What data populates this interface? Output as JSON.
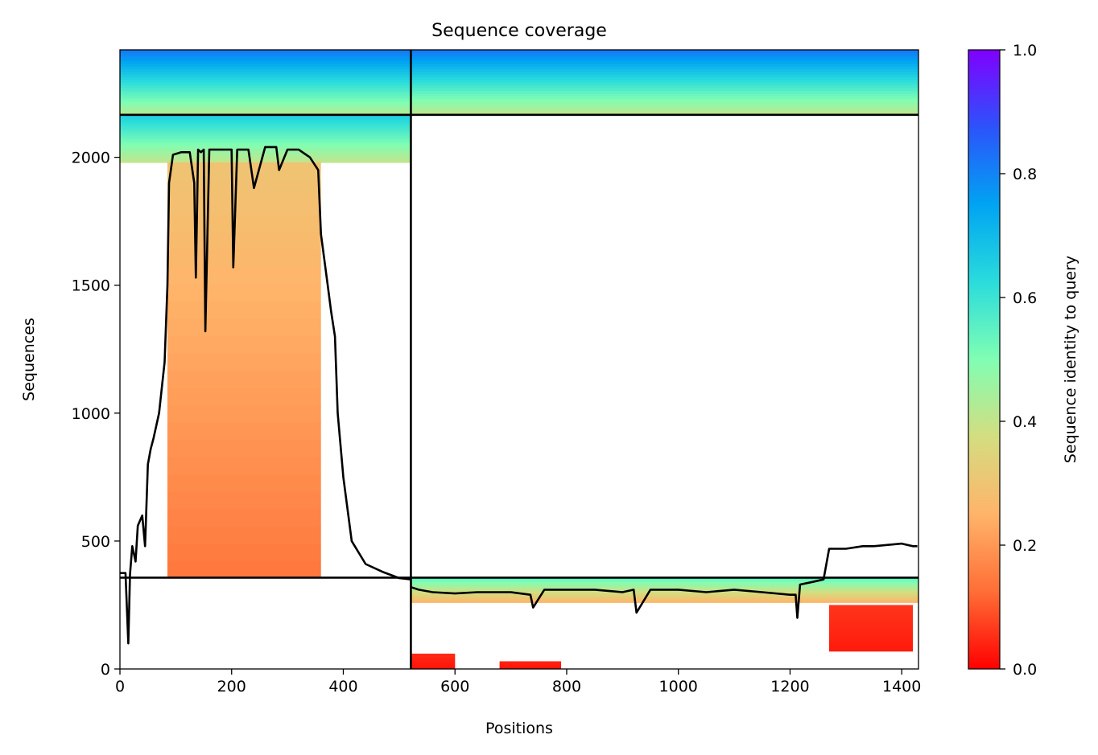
{
  "chart_data": {
    "type": "heatmap",
    "title": "Sequence coverage",
    "xlabel": "Positions",
    "ylabel": "Sequences",
    "xlim": [
      0,
      1430
    ],
    "ylim": [
      0,
      2420
    ],
    "xticks": [
      0,
      200,
      400,
      600,
      800,
      1000,
      1200,
      1400
    ],
    "yticks": [
      0,
      500,
      1000,
      1500,
      2000
    ],
    "grid": false,
    "colorbar": {
      "label": "Sequence identity to query",
      "range": [
        0,
        1
      ],
      "ticks": [
        "0.0",
        "0.2",
        "0.4",
        "0.6",
        "0.8",
        "1.0"
      ],
      "colormap": "rainbow_r",
      "colors": [
        "#ff0000",
        "#ff6e36",
        "#ffb46a",
        "#d4dd80",
        "#80feb3",
        "#2adcdc",
        "#00a4f2",
        "#2c53fb",
        "#8000ff"
      ]
    },
    "chain_boundaries": {
      "x": [
        521
      ],
      "y": [
        357,
        2166
      ]
    },
    "alignment_blocks": [
      {
        "x": [
          0,
          521
        ],
        "y": [
          2166,
          2420
        ],
        "identity": [
          0.42,
          0.82
        ]
      },
      {
        "x": [
          521,
          1430
        ],
        "y": [
          2166,
          2420
        ],
        "identity": [
          0.4,
          0.82
        ]
      },
      {
        "x": [
          0,
          521
        ],
        "y": [
          1980,
          2166
        ],
        "identity": [
          0.4,
          0.66
        ]
      },
      {
        "x": [
          85,
          360
        ],
        "y": [
          357,
          1980
        ],
        "identity": [
          0.14,
          0.3
        ]
      },
      {
        "x": [
          521,
          1430
        ],
        "y": [
          260,
          357
        ],
        "identity": [
          0.25,
          0.55
        ]
      },
      {
        "x": [
          1270,
          1420
        ],
        "y": [
          70,
          250
        ],
        "identity": [
          0.03,
          0.06
        ]
      },
      {
        "x": [
          521,
          600
        ],
        "y": [
          0,
          60
        ],
        "identity": [
          0.02,
          0.05
        ]
      },
      {
        "x": [
          680,
          790
        ],
        "y": [
          0,
          30
        ],
        "identity": [
          0.02,
          0.04
        ]
      }
    ],
    "coverage_line": {
      "color": "#000000",
      "x": [
        0,
        10,
        15,
        18,
        22,
        28,
        32,
        40,
        45,
        50,
        55,
        60,
        70,
        80,
        85,
        88,
        95,
        110,
        125,
        133,
        136,
        140,
        145,
        150,
        153,
        160,
        180,
        200,
        203,
        210,
        230,
        240,
        260,
        280,
        285,
        300,
        320,
        340,
        355,
        360,
        372,
        378,
        385,
        390,
        400,
        415,
        440,
        470,
        500,
        521,
        521,
        535,
        560,
        600,
        640,
        700,
        735,
        740,
        760,
        800,
        850,
        900,
        920,
        925,
        950,
        1000,
        1050,
        1100,
        1150,
        1200,
        1210,
        1213,
        1218,
        1240,
        1260,
        1270,
        1280,
        1300,
        1330,
        1350,
        1400,
        1420,
        1428
      ],
      "y": [
        375,
        375,
        100,
        370,
        480,
        420,
        560,
        600,
        480,
        800,
        860,
        900,
        1000,
        1200,
        1500,
        1900,
        2010,
        2020,
        2020,
        1900,
        1530,
        2030,
        2020,
        2030,
        1320,
        2030,
        2030,
        2030,
        1570,
        2030,
        2030,
        1880,
        2040,
        2040,
        1950,
        2030,
        2030,
        2000,
        1950,
        1700,
        1500,
        1400,
        1300,
        1000,
        750,
        500,
        410,
        380,
        355,
        350,
        320,
        310,
        300,
        295,
        300,
        300,
        290,
        240,
        310,
        310,
        310,
        300,
        310,
        220,
        310,
        310,
        300,
        310,
        300,
        290,
        290,
        200,
        330,
        340,
        350,
        470,
        470,
        470,
        480,
        480,
        490,
        480,
        480
      ]
    }
  }
}
